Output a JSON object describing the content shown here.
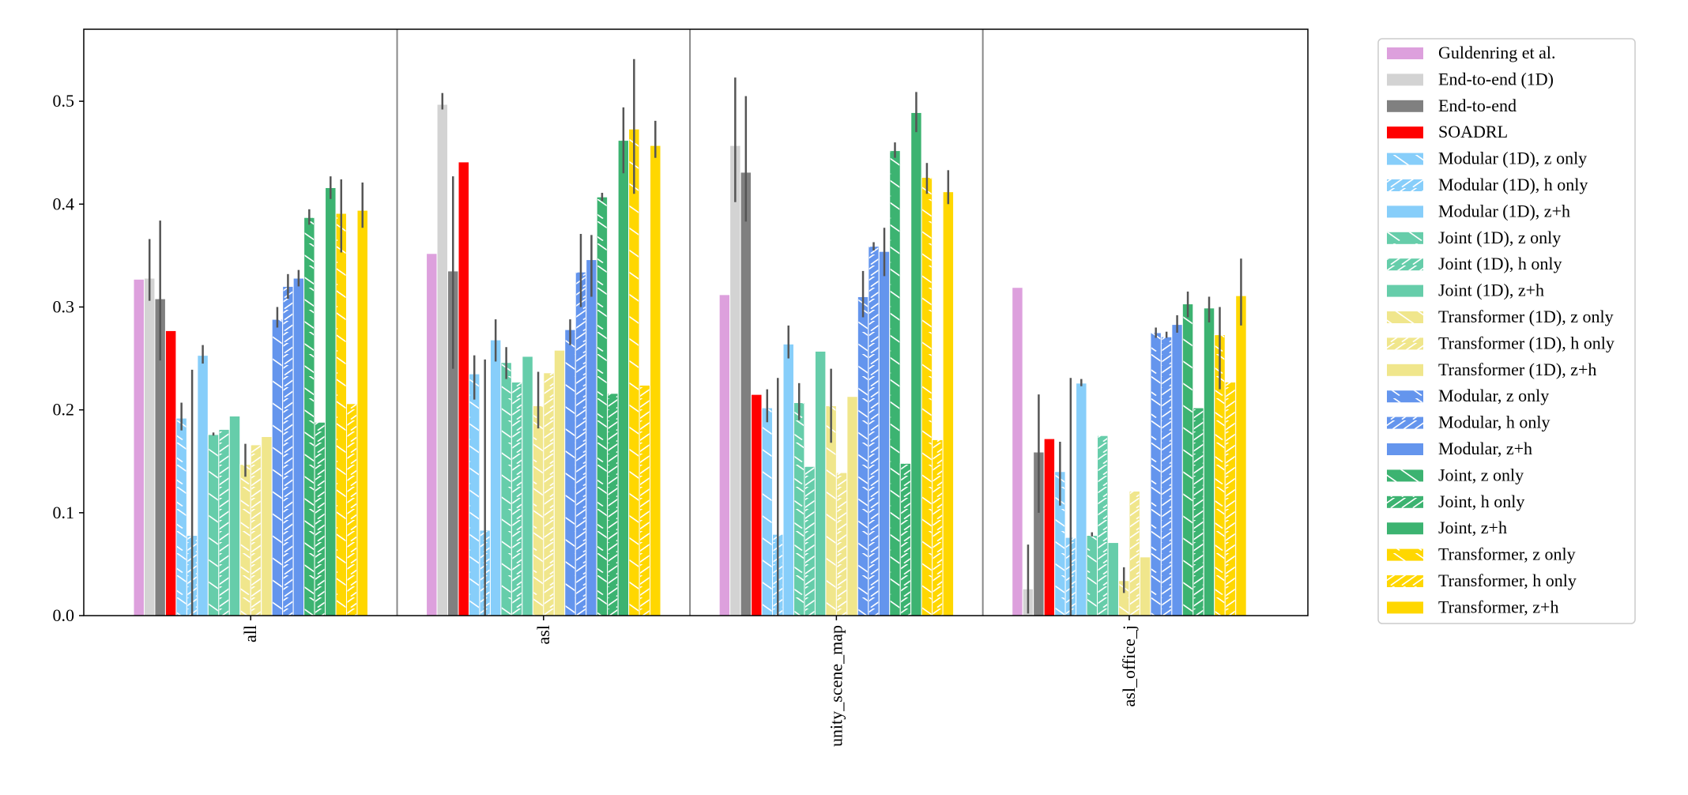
{
  "chart_data": {
    "type": "bar",
    "title": "",
    "xlabel": "",
    "ylabel": "",
    "ylim": [
      0,
      0.57
    ],
    "yticks": [
      "0.0",
      "0.1",
      "0.2",
      "0.3",
      "0.4",
      "0.5"
    ],
    "grid": false,
    "legend_position": "outside-right",
    "categories": [
      "all",
      "asl",
      "unity_scene_map",
      "asl_office_j"
    ],
    "series": [
      {
        "name": "Guldenring et al.",
        "color": "#DDA0DD",
        "hatch": "none",
        "values": [
          0.327,
          0.352,
          0.312,
          0.319
        ],
        "err": [
          null,
          null,
          null,
          null
        ]
      },
      {
        "name": "End-to-end (1D)",
        "color": "#D3D3D3",
        "hatch": "none",
        "values": [
          0.328,
          0.497,
          0.457,
          0.026
        ],
        "err": [
          [
            0.306,
            0.366
          ],
          [
            0.492,
            0.508
          ],
          [
            0.402,
            0.523
          ],
          [
            0.002,
            0.069
          ]
        ]
      },
      {
        "name": "End-to-end",
        "color": "#808080",
        "hatch": "none",
        "values": [
          0.308,
          0.335,
          0.431,
          0.159
        ],
        "err": [
          [
            0.248,
            0.384
          ],
          [
            0.24,
            0.427
          ],
          [
            0.383,
            0.505
          ],
          [
            0.1,
            0.215
          ]
        ]
      },
      {
        "name": "SOADRL",
        "color": "#FF0000",
        "hatch": "none",
        "values": [
          0.277,
          0.441,
          0.215,
          0.172
        ],
        "err": [
          null,
          null,
          null,
          null
        ]
      },
      {
        "name": "Modular (1D), z only",
        "color": "#87CEFA",
        "hatch": "back",
        "values": [
          0.192,
          0.235,
          0.202,
          0.14
        ],
        "err": [
          [
            0.18,
            0.207
          ],
          [
            0.21,
            0.253
          ],
          [
            0.188,
            0.22
          ],
          [
            0.107,
            0.169
          ]
        ]
      },
      {
        "name": "Modular (1D), h only",
        "color": "#87CEFA",
        "hatch": "fwd",
        "values": [
          0.078,
          0.083,
          0.079,
          0.076
        ],
        "err": [
          [
            0.0,
            0.239
          ],
          [
            0.0,
            0.249
          ],
          [
            0.0,
            0.231
          ],
          [
            0.0,
            0.231
          ]
        ]
      },
      {
        "name": "Modular (1D), z+h",
        "color": "#87CEFA",
        "hatch": "none",
        "values": [
          0.253,
          0.268,
          0.264,
          0.226
        ],
        "err": [
          [
            0.245,
            0.263
          ],
          [
            0.247,
            0.288
          ],
          [
            0.25,
            0.282
          ],
          [
            0.223,
            0.23
          ]
        ]
      },
      {
        "name": "Joint (1D), z only",
        "color": "#66CDAA",
        "hatch": "back",
        "values": [
          0.176,
          0.246,
          0.207,
          0.078
        ],
        "err": [
          [
            0.175,
            0.178
          ],
          [
            0.23,
            0.261
          ],
          [
            0.19,
            0.226
          ],
          [
            0.077,
            0.081
          ]
        ]
      },
      {
        "name": "Joint (1D), h only",
        "color": "#66CDAA",
        "hatch": "fwd",
        "values": [
          0.181,
          0.227,
          0.145,
          0.175
        ],
        "err": [
          null,
          null,
          null,
          null
        ]
      },
      {
        "name": "Joint (1D), z+h",
        "color": "#66CDAA",
        "hatch": "none",
        "values": [
          0.194,
          0.252,
          0.257,
          0.071
        ],
        "err": [
          null,
          null,
          null,
          null
        ]
      },
      {
        "name": "Transformer (1D), z only",
        "color": "#F0E68C",
        "hatch": "back",
        "values": [
          0.147,
          0.204,
          0.204,
          0.034
        ],
        "err": [
          [
            0.135,
            0.167
          ],
          [
            0.182,
            0.237
          ],
          [
            0.168,
            0.24
          ],
          [
            0.022,
            0.047
          ]
        ]
      },
      {
        "name": "Transformer (1D), h only",
        "color": "#F0E68C",
        "hatch": "fwd",
        "values": [
          0.166,
          0.236,
          0.139,
          0.121
        ],
        "err": [
          null,
          null,
          null,
          null
        ]
      },
      {
        "name": "Transformer (1D), z+h",
        "color": "#F0E68C",
        "hatch": "none",
        "values": [
          0.174,
          0.258,
          0.213,
          0.057
        ],
        "err": [
          null,
          null,
          null,
          null
        ]
      },
      {
        "name": "Modular, z only",
        "color": "#6495ED",
        "hatch": "back",
        "values": [
          0.288,
          0.278,
          0.31,
          0.275
        ],
        "err": [
          [
            0.28,
            0.3
          ],
          [
            0.263,
            0.288
          ],
          [
            0.29,
            0.335
          ],
          [
            0.27,
            0.28
          ]
        ]
      },
      {
        "name": "Modular, h only",
        "color": "#6495ED",
        "hatch": "fwd",
        "values": [
          0.32,
          0.334,
          0.359,
          0.271
        ],
        "err": [
          [
            0.308,
            0.332
          ],
          [
            0.3,
            0.371
          ],
          [
            0.355,
            0.363
          ],
          [
            0.27,
            0.276
          ]
        ]
      },
      {
        "name": "Modular, z+h",
        "color": "#6495ED",
        "hatch": "none",
        "values": [
          0.328,
          0.346,
          0.354,
          0.283
        ],
        "err": [
          [
            0.32,
            0.336
          ],
          [
            0.31,
            0.37
          ],
          [
            0.33,
            0.377
          ],
          [
            0.275,
            0.292
          ]
        ]
      },
      {
        "name": "Joint, z only",
        "color": "#3CB371",
        "hatch": "back",
        "values": [
          0.387,
          0.407,
          0.452,
          0.303
        ],
        "err": [
          [
            0.38,
            0.395
          ],
          [
            0.403,
            0.411
          ],
          [
            0.445,
            0.46
          ],
          [
            0.29,
            0.315
          ]
        ]
      },
      {
        "name": "Joint, h only",
        "color": "#3CB371",
        "hatch": "fwd",
        "values": [
          0.188,
          0.216,
          0.148,
          0.202
        ],
        "err": [
          null,
          null,
          null,
          null
        ]
      },
      {
        "name": "Joint, z+h",
        "color": "#3CB371",
        "hatch": "none",
        "values": [
          0.416,
          0.462,
          0.489,
          0.299
        ],
        "err": [
          [
            0.405,
            0.427
          ],
          [
            0.43,
            0.494
          ],
          [
            0.47,
            0.509
          ],
          [
            0.285,
            0.31
          ]
        ]
      },
      {
        "name": "Transformer, z only",
        "color": "#FFD700",
        "hatch": "back",
        "values": [
          0.391,
          0.473,
          0.426,
          0.273
        ],
        "err": [
          [
            0.353,
            0.424
          ],
          [
            0.41,
            0.541
          ],
          [
            0.41,
            0.44
          ],
          [
            0.22,
            0.3
          ]
        ]
      },
      {
        "name": "Transformer, h only",
        "color": "#FFD700",
        "hatch": "fwd",
        "values": [
          0.206,
          0.224,
          0.171,
          0.227
        ],
        "err": [
          null,
          null,
          null,
          null
        ]
      },
      {
        "name": "Transformer, z+h",
        "color": "#FFD700",
        "hatch": "none",
        "values": [
          0.394,
          0.457,
          0.412,
          0.311
        ],
        "err": [
          [
            0.377,
            0.421
          ],
          [
            0.445,
            0.481
          ],
          [
            0.4,
            0.433
          ],
          [
            0.282,
            0.347
          ]
        ]
      }
    ]
  }
}
